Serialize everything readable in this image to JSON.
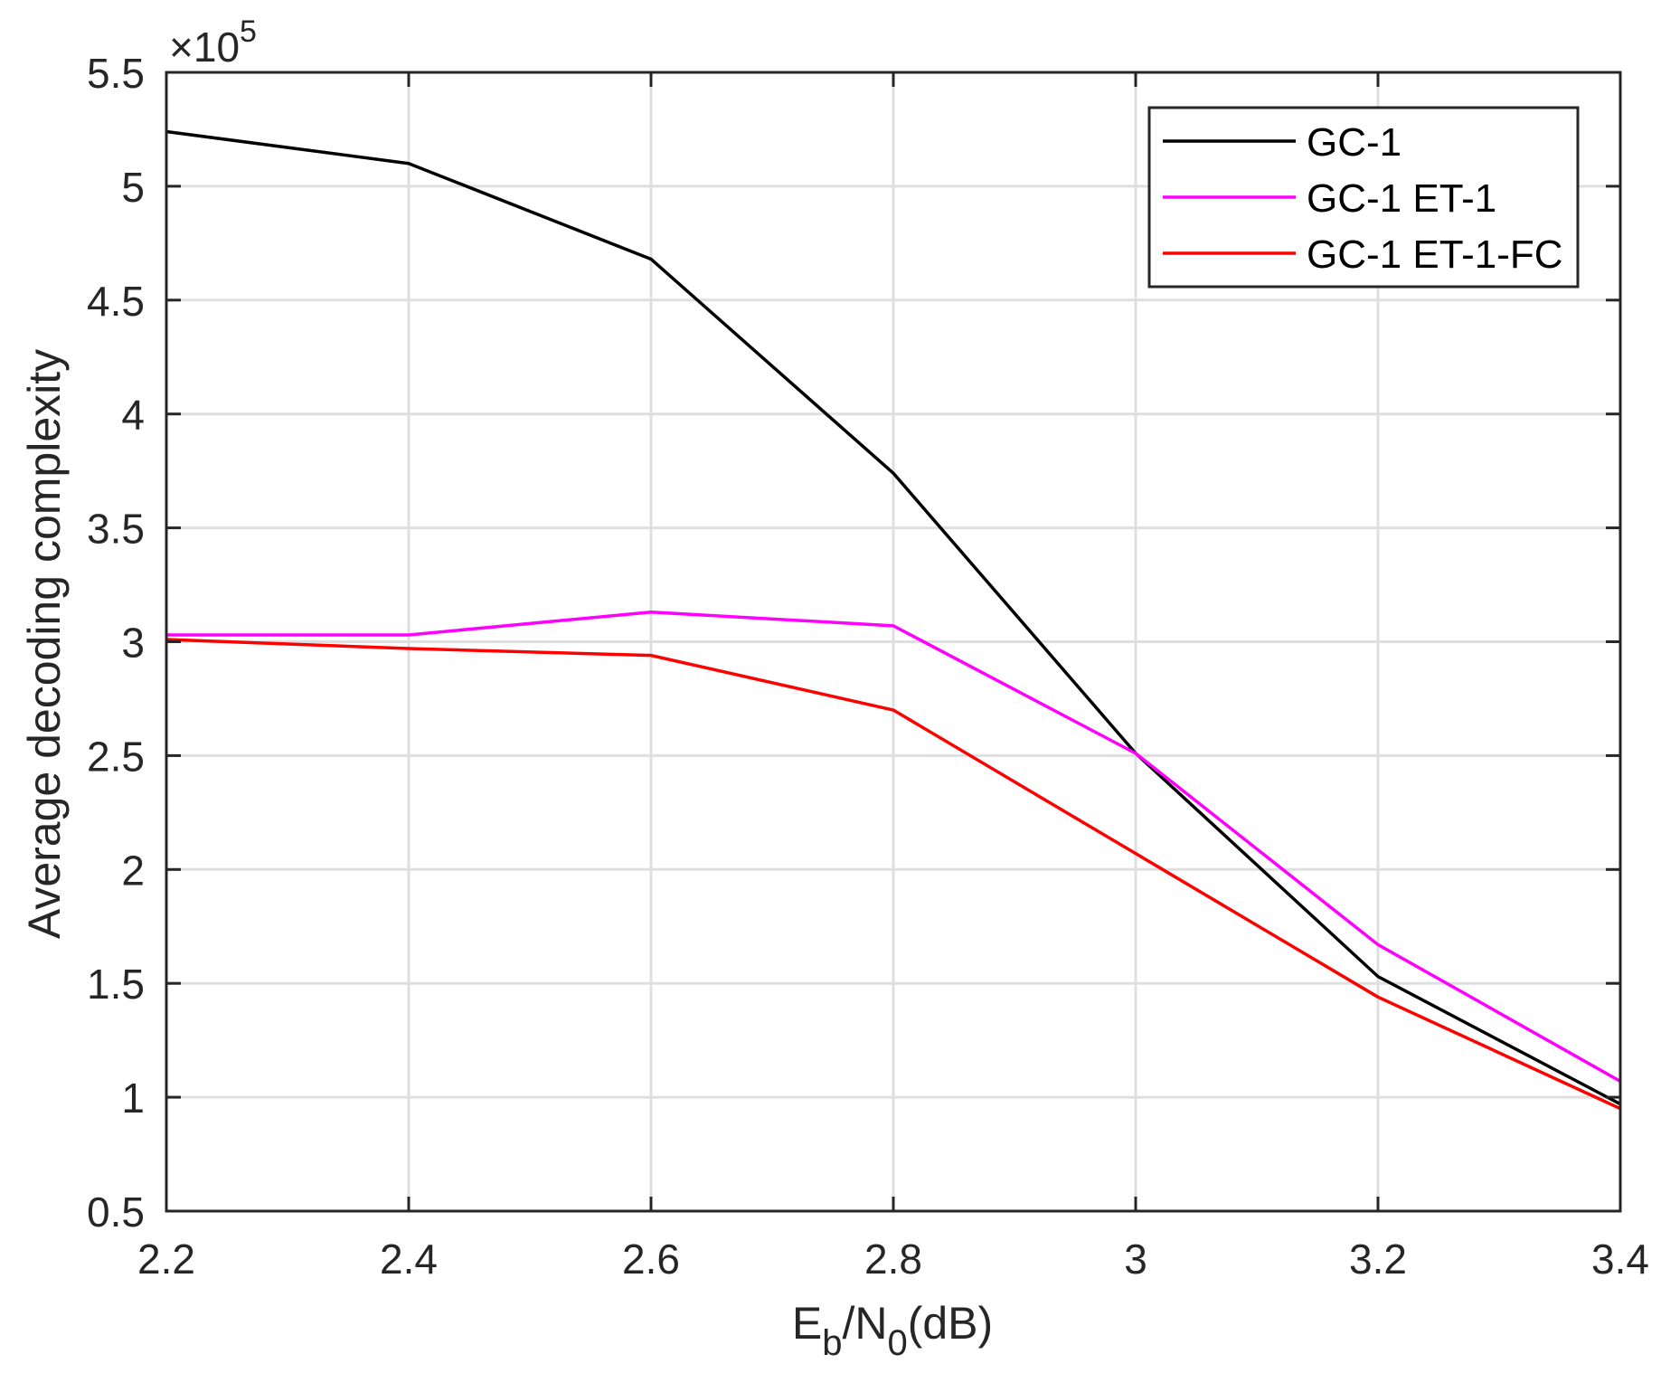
{
  "chart_data": {
    "type": "line",
    "title": "",
    "xlabel": "Eb/N0(dB)",
    "xlabel_parts": {
      "main1": "E",
      "sub1": "b",
      "main2": "/N",
      "sub2": "0",
      "main3": "(dB)"
    },
    "ylabel": "Average decoding complexity",
    "y_exponent_label": {
      "base": "×10",
      "exp": "5"
    },
    "x": [
      2.2,
      2.4,
      2.6,
      2.8,
      3.0,
      3.2,
      3.4
    ],
    "xlim": [
      2.2,
      3.4
    ],
    "ylim": [
      0.5,
      5.5
    ],
    "xticks": [
      2.2,
      2.4,
      2.6,
      2.8,
      3.0,
      3.2,
      3.4
    ],
    "xtick_labels": [
      "2.2",
      "2.4",
      "2.6",
      "2.8",
      "3",
      "3.2",
      "3.4"
    ],
    "yticks": [
      0.5,
      1,
      1.5,
      2,
      2.5,
      3,
      3.5,
      4,
      4.5,
      5,
      5.5
    ],
    "ytick_labels": [
      "0.5",
      "1",
      "1.5",
      "2",
      "2.5",
      "3",
      "3.5",
      "4",
      "4.5",
      "5",
      "5.5"
    ],
    "grid": true,
    "legend_position": "upper right",
    "series": [
      {
        "name": "GC-1",
        "color": "#000000",
        "values": [
          5.24,
          5.1,
          4.68,
          3.74,
          2.51,
          1.53,
          0.97
        ]
      },
      {
        "name": "GC-1 ET-1",
        "color": "#ff00ff",
        "values": [
          3.03,
          3.03,
          3.13,
          3.07,
          2.51,
          1.67,
          1.07
        ]
      },
      {
        "name": "GC-1 ET-1-FC",
        "color": "#ff0000",
        "values": [
          3.01,
          2.97,
          2.94,
          2.7,
          2.07,
          1.44,
          0.95
        ]
      }
    ]
  }
}
